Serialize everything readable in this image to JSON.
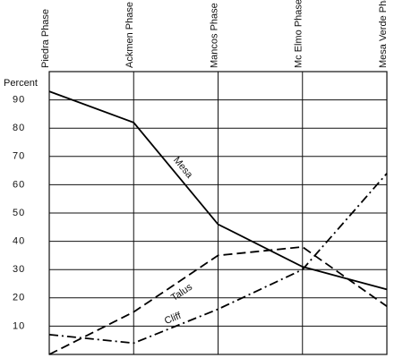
{
  "chart_data": {
    "type": "line",
    "ylabel": "Percent",
    "categories": [
      "Piedra Phase",
      "Ackmen Phase",
      "Mancos Phase",
      "Mc Elmo Phase",
      "Mesa Verde Phase"
    ],
    "series": [
      {
        "name": "Mesa",
        "color": "#000000",
        "dash": "solid",
        "values": [
          93,
          82,
          46,
          31,
          23
        ]
      },
      {
        "name": "Talus",
        "color": "#000000",
        "dash": "dashed",
        "values": [
          0,
          15,
          35,
          38,
          17
        ]
      },
      {
        "name": "Cliff",
        "color": "#000000",
        "dash": "dashdot",
        "values": [
          7,
          4,
          16,
          30,
          64
        ]
      }
    ],
    "ylim": [
      0,
      100
    ],
    "yticks": [
      10,
      20,
      30,
      40,
      50,
      60,
      70,
      80,
      90
    ],
    "grid": true
  }
}
